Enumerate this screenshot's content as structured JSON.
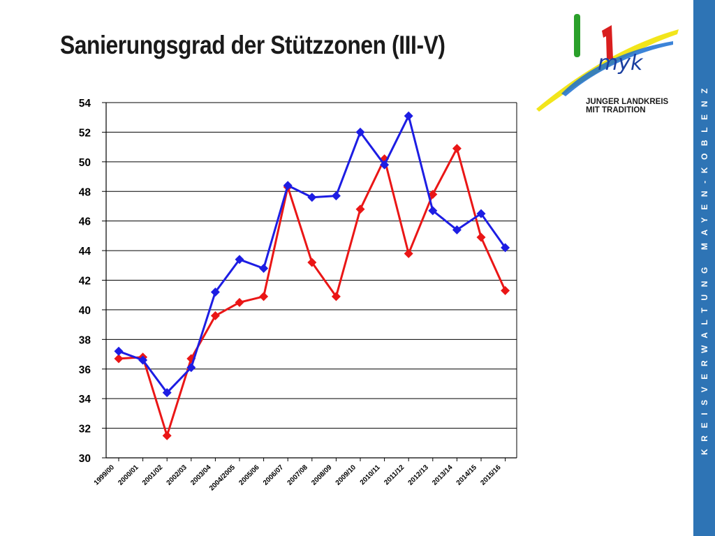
{
  "slide": {
    "title": "Sanierungsgrad der Stützzonen (III-V)",
    "side_text": "KREISVERWALTUNG MAYEN-KOBLENZ"
  },
  "logo": {
    "text_line1": "JUNGER LANDKREIS",
    "text_line2": "MIT TRADITION",
    "wordmark": "myk"
  },
  "colors": {
    "series_blue": "#1d1de3",
    "series_red": "#ea1616",
    "side_band": "#2e74b5",
    "grid": "#000000"
  },
  "chart_data": {
    "type": "line",
    "title": "",
    "xlabel": "",
    "ylabel": "",
    "ylim": [
      30,
      54
    ],
    "y_ticks": [
      30,
      32,
      34,
      36,
      38,
      40,
      42,
      44,
      46,
      48,
      50,
      52,
      54
    ],
    "grid": true,
    "legend": "none",
    "categories": [
      "1999/00",
      "2000/01",
      "2001/02",
      "2002/03",
      "2003/04",
      "2004/2005",
      "2005/06",
      "2006/07",
      "2007/08",
      "2008/09",
      "2009/10",
      "2010/11",
      "2011/12",
      "2012/13",
      "2013/14",
      "2014/15",
      "2015/16"
    ],
    "series": [
      {
        "color": "#1d1de3",
        "values": [
          37.2,
          36.6,
          34.4,
          36.1,
          41.2,
          43.4,
          42.8,
          48.4,
          47.6,
          47.7,
          52.0,
          49.8,
          53.1,
          46.7,
          45.4,
          46.5,
          44.2
        ]
      },
      {
        "color": "#ea1616",
        "values": [
          36.7,
          36.8,
          31.5,
          36.7,
          39.6,
          40.5,
          40.9,
          48.3,
          43.2,
          40.9,
          46.8,
          50.2,
          43.8,
          47.8,
          50.9,
          44.9,
          41.3
        ]
      }
    ]
  }
}
